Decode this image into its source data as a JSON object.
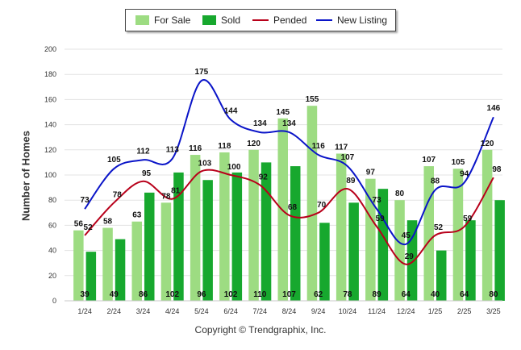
{
  "chart_data": {
    "type": "bar",
    "categories": [
      "1/24",
      "2/24",
      "3/24",
      "4/24",
      "5/24",
      "6/24",
      "7/24",
      "8/24",
      "9/24",
      "10/24",
      "11/24",
      "12/24",
      "1/25",
      "2/25",
      "3/25"
    ],
    "series": [
      {
        "name": "For Sale",
        "kind": "bar",
        "color": "#9ddc82",
        "values": [
          56,
          58,
          63,
          78,
          116,
          118,
          120,
          145,
          155,
          117,
          97,
          80,
          107,
          105,
          120
        ]
      },
      {
        "name": "Sold",
        "kind": "bar",
        "color": "#17a82e",
        "values": [
          39,
          49,
          86,
          102,
          96,
          102,
          110,
          107,
          62,
          78,
          89,
          64,
          40,
          64,
          80
        ]
      },
      {
        "name": "Pended",
        "kind": "line",
        "color": "#b8001a",
        "values": [
          52,
          78,
          95,
          81,
          103,
          100,
          92,
          68,
          70,
          89,
          59,
          29,
          52,
          59,
          98
        ]
      },
      {
        "name": "New Listing",
        "kind": "line",
        "color": "#0a14c8",
        "values": [
          73,
          105,
          112,
          113,
          175,
          144,
          134,
          134,
          116,
          107,
          73,
          45,
          88,
          94,
          146
        ]
      }
    ],
    "ylabel": "Number of Homes",
    "xlabel": "",
    "ylim": [
      0,
      200
    ],
    "yticks": [
      0,
      20,
      40,
      60,
      80,
      100,
      120,
      140,
      160,
      180,
      200
    ],
    "grid": true,
    "legend_position": "top-center",
    "copyright": "Copyright © Trendgraphix, Inc."
  }
}
